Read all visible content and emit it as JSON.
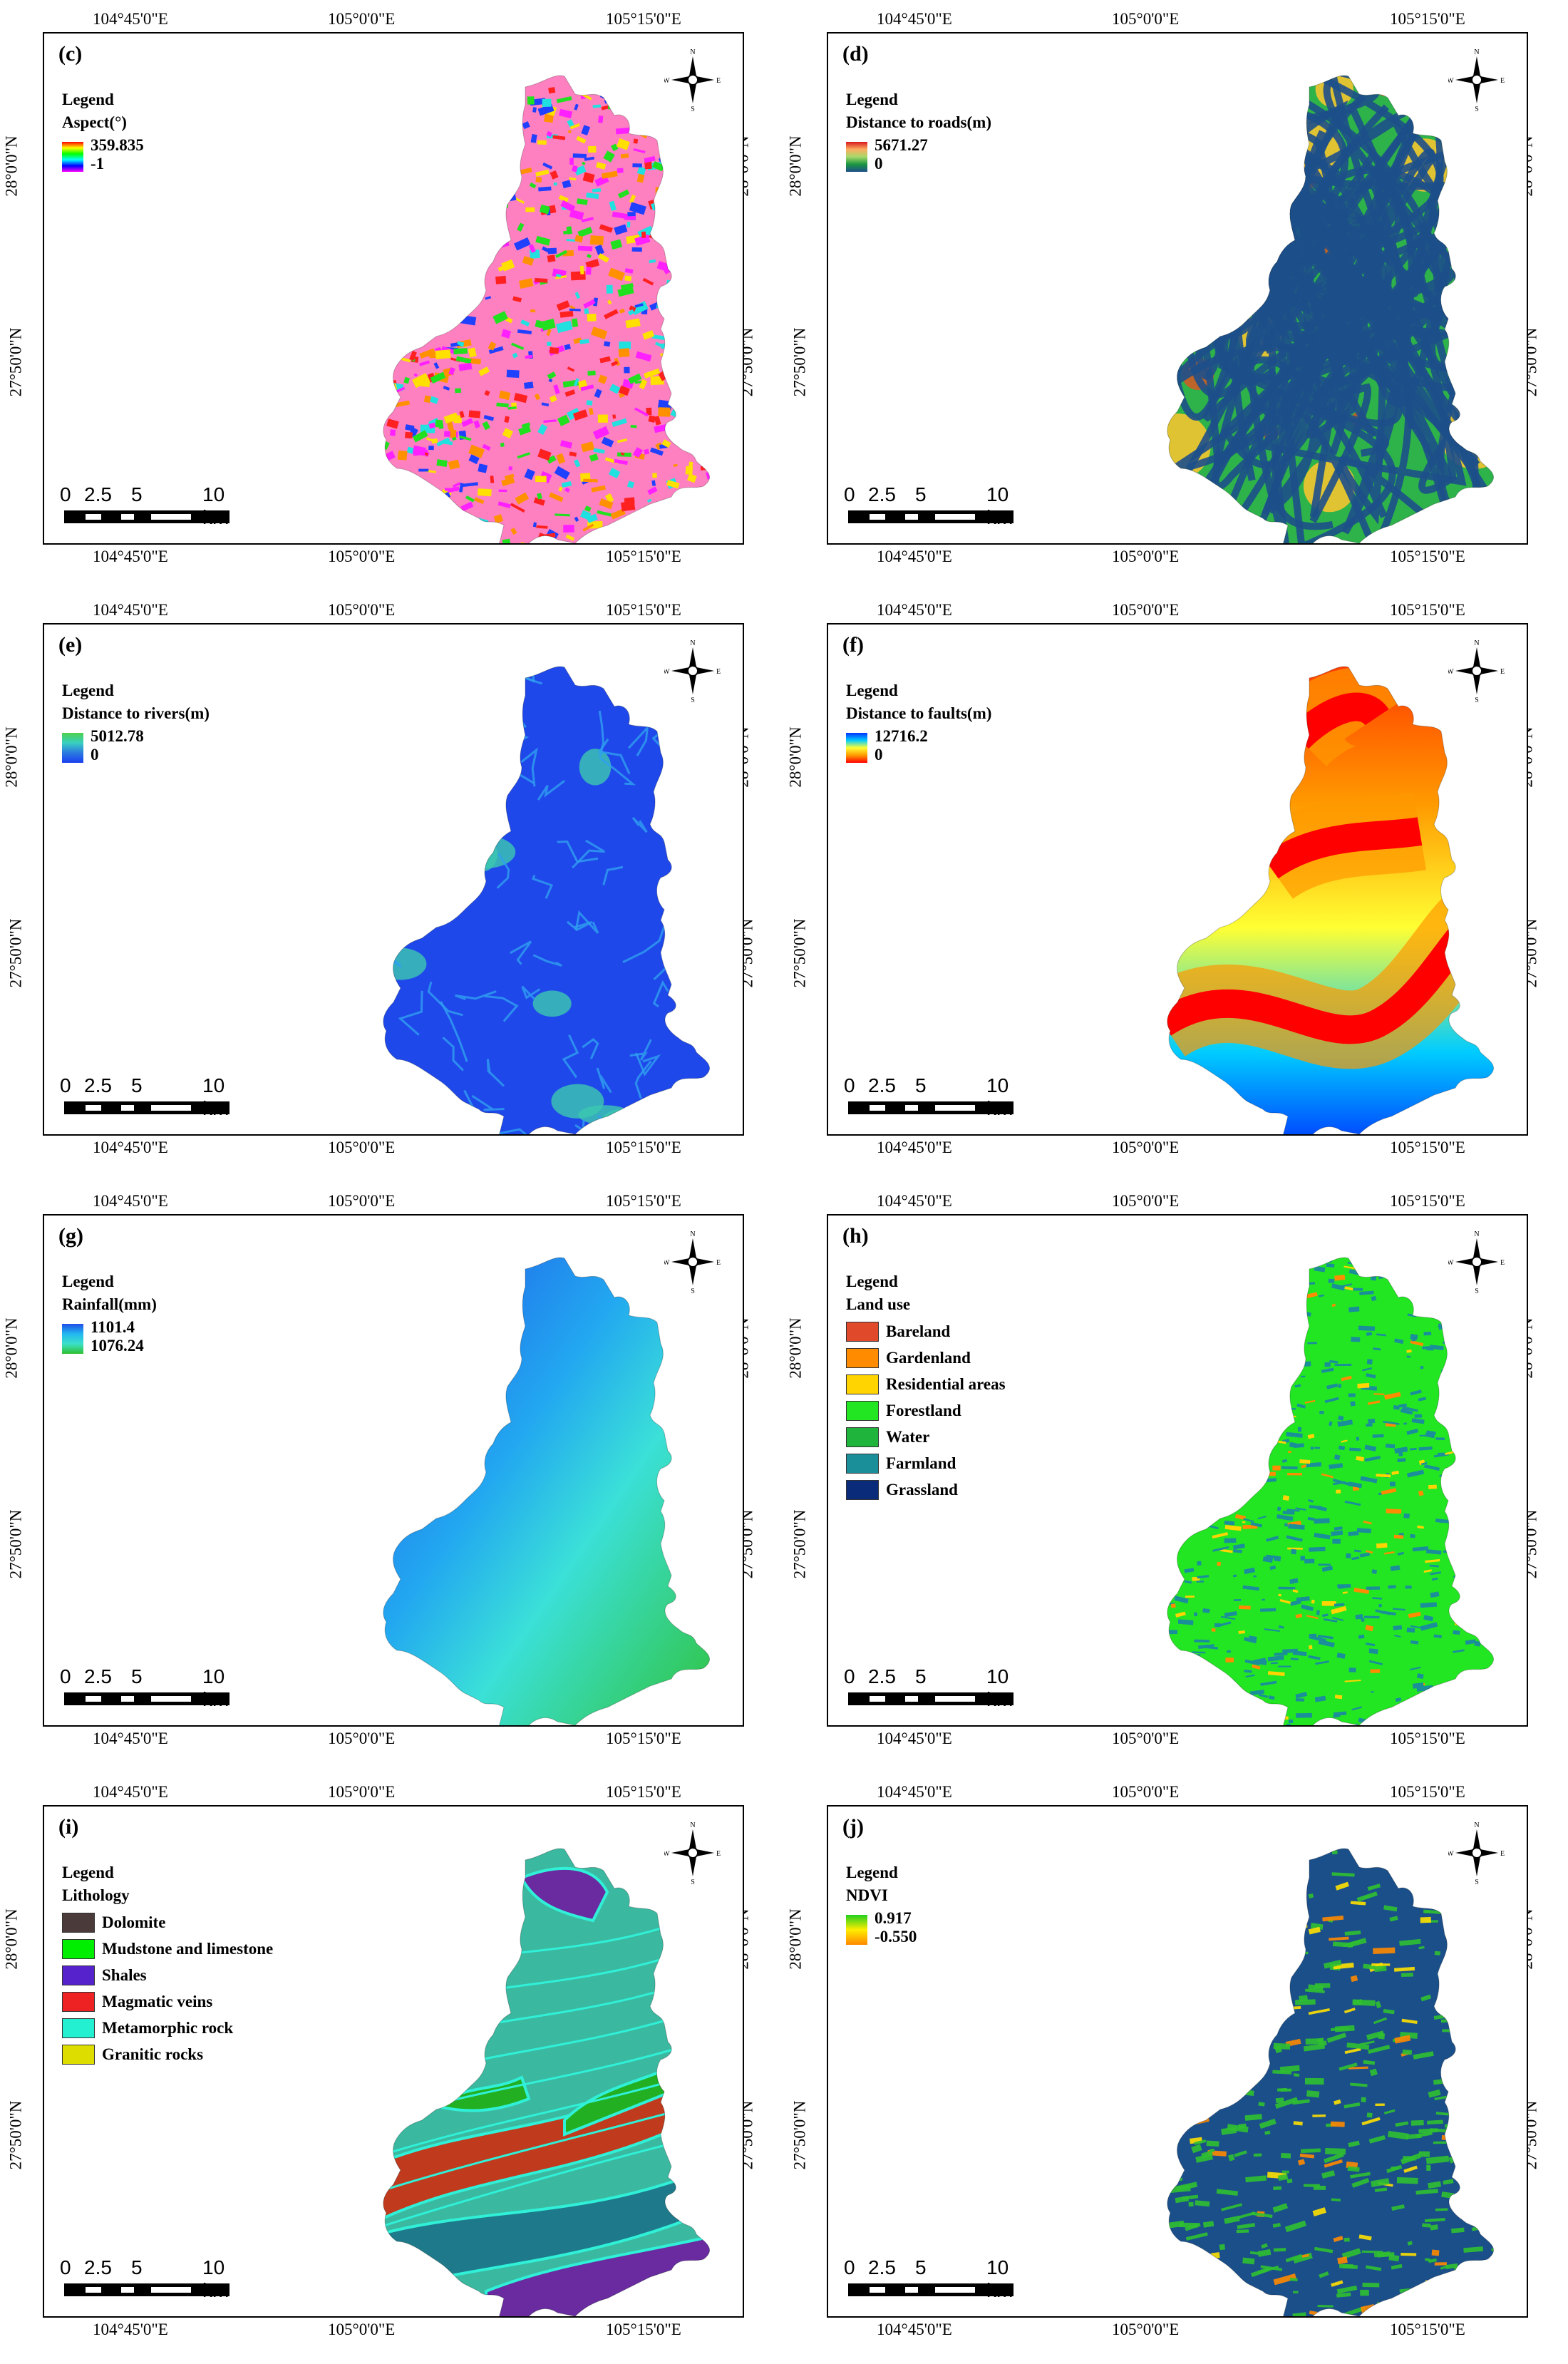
{
  "coords": {
    "top": [
      "104°45'0\"E",
      "105°0'0\"E",
      "105°15'0\"E"
    ],
    "bottom": [
      "104°45'0\"E",
      "105°0'0\"E",
      "105°15'0\"E"
    ],
    "lat": [
      "28°0'0\"N",
      "27°50'0\"N"
    ]
  },
  "scale": {
    "ticks": [
      "0",
      "2.5",
      "5",
      "10 km"
    ]
  },
  "compass": {
    "n": "N",
    "s": "S",
    "e": "E",
    "w": "W"
  },
  "panels": [
    {
      "id": "c",
      "label": "(c)",
      "legend_title": "Legend",
      "layer": "Aspect(°)",
      "max": "359.835",
      "min": "-1",
      "ramp": [
        "#ff0000",
        "#ffff00",
        "#00ff00",
        "#00ffff",
        "#0000ff",
        "#ff00ff"
      ],
      "fill": "aspect"
    },
    {
      "id": "d",
      "label": "(d)",
      "legend_title": "Legend",
      "layer": "Distance to roads(m)",
      "max": "5671.27",
      "min": "0",
      "ramp": [
        "#d7191c",
        "#fdae61",
        "#a6d96a",
        "#1a9641",
        "#1d4f8a"
      ],
      "fill": "roads"
    },
    {
      "id": "e",
      "label": "(e)",
      "legend_title": "Legend",
      "layer": "Distance to rivers(m)",
      "max": "5012.78",
      "min": "0",
      "ramp": [
        "#4dd04d",
        "#39d0c0",
        "#2a7ae0",
        "#1a3ff0"
      ],
      "fill": "rivers"
    },
    {
      "id": "f",
      "label": "(f)",
      "legend_title": "Legend",
      "layer": "Distance to faults(m)",
      "max": "12716.2",
      "min": "0",
      "ramp": [
        "#0033ff",
        "#00ccff",
        "#ffff33",
        "#ff9900",
        "#ff0000"
      ],
      "fill": "faults"
    },
    {
      "id": "g",
      "label": "(g)",
      "legend_title": "Legend",
      "layer": "Rainfall(mm)",
      "max": "1101.4",
      "min": "1076.24",
      "ramp": [
        "#1f4fe8",
        "#22b8f0",
        "#3be0c8",
        "#2fc030"
      ],
      "fill": "rain"
    },
    {
      "id": "h",
      "label": "(h)",
      "legend_title": "Legend",
      "layer": "Land  use",
      "classes": [
        {
          "name": "Bareland",
          "color": "#e04a2a"
        },
        {
          "name": "Gardenland",
          "color": "#ff8c00"
        },
        {
          "name": "Residential areas",
          "color": "#ffd400"
        },
        {
          "name": "Forestland",
          "color": "#22e622"
        },
        {
          "name": "Water",
          "color": "#1fb53c"
        },
        {
          "name": "Farmland",
          "color": "#1a8f9a"
        },
        {
          "name": "Grassland",
          "color": "#0a2a7a"
        }
      ],
      "fill": "landuse"
    },
    {
      "id": "i",
      "label": "(i)",
      "legend_title": "Legend",
      "layer": "Lithology",
      "classes": [
        {
          "name": "Dolomite",
          "color": "#4a3a3a"
        },
        {
          "name": "Mudstone and limestone",
          "color": "#00ee00"
        },
        {
          "name": "Shales",
          "color": "#5522cc"
        },
        {
          "name": "Magmatic veins",
          "color": "#ee2222"
        },
        {
          "name": "Metamorphic rock",
          "color": "#22f0d0"
        },
        {
          "name": "Granitic rocks",
          "color": "#dddd00"
        }
      ],
      "fill": "litho"
    },
    {
      "id": "j",
      "label": "(j)",
      "legend_title": "Legend",
      "layer": "NDVI",
      "max": "0.917",
      "min": "-0.550",
      "ramp": [
        "#1fd01f",
        "#ffee00",
        "#ff8800"
      ],
      "fill": "ndvi"
    }
  ]
}
